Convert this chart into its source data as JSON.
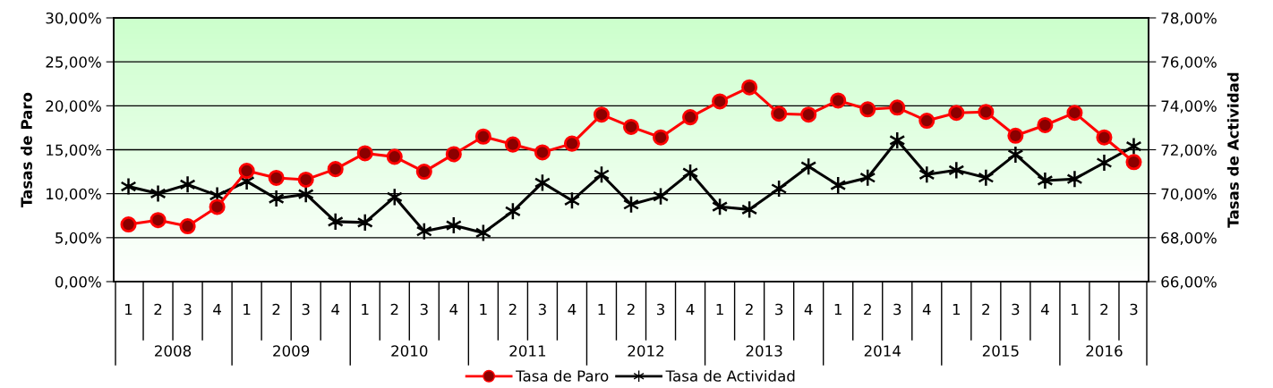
{
  "chart_data": {
    "type": "line",
    "categories": [
      "1",
      "2",
      "3",
      "4",
      "1",
      "2",
      "3",
      "4",
      "1",
      "2",
      "3",
      "4",
      "1",
      "2",
      "3",
      "4",
      "1",
      "2",
      "3",
      "4",
      "1",
      "2",
      "3",
      "4",
      "1",
      "2",
      "3",
      "4",
      "1",
      "2",
      "3",
      "4",
      "1",
      "2",
      "3"
    ],
    "annotations": [
      "2008",
      "2009",
      "2010",
      "2011",
      "2012",
      "2013",
      "2014",
      "2015",
      "2016"
    ],
    "series": [
      {
        "name": "Tasa de Paro",
        "color": "#ff0000",
        "marker": "circle",
        "values": [
          6.5,
          7.0,
          6.3,
          8.5,
          12.6,
          11.8,
          11.6,
          12.8,
          14.6,
          14.2,
          12.5,
          14.5,
          16.5,
          15.6,
          14.7,
          15.7,
          19.0,
          17.6,
          16.4,
          18.7,
          20.5,
          22.1,
          19.1,
          19.0,
          20.6,
          19.6,
          19.8,
          18.3,
          19.2,
          19.3,
          16.6,
          17.8,
          19.2,
          16.4,
          13.6
        ]
      },
      {
        "name": "Tasa de Actividad",
        "color": "#000000",
        "marker": "cross",
        "axis": "y2",
        "values": [
          70.33,
          70.01,
          70.42,
          69.92,
          70.56,
          69.78,
          69.98,
          68.73,
          68.69,
          69.85,
          68.29,
          68.56,
          68.22,
          69.2,
          70.5,
          69.69,
          70.87,
          69.51,
          69.88,
          70.96,
          69.41,
          69.28,
          70.23,
          71.24,
          70.39,
          70.73,
          72.43,
          70.87,
          71.07,
          70.73,
          71.78,
          70.6,
          70.67,
          71.41,
          72.16
        ]
      }
    ],
    "ylabel": "Tasas de Paro",
    "y2label": "Tasas de Actividad",
    "ylim": [
      0,
      30
    ],
    "yticks": [
      {
        "value": 0,
        "label": "0,00%"
      },
      {
        "value": 5,
        "label": "5,00%"
      },
      {
        "value": 10,
        "label": "10,00%"
      },
      {
        "value": 15,
        "label": "15,00%"
      },
      {
        "value": 20,
        "label": "20,00%"
      },
      {
        "value": 25,
        "label": "25,00%"
      },
      {
        "value": 30,
        "label": "30,00%"
      }
    ],
    "y2lim": [
      66,
      78
    ],
    "y2ticks": [
      {
        "value": 66,
        "label": "66,00%"
      },
      {
        "value": 68,
        "label": "68,00%"
      },
      {
        "value": 70,
        "label": "70,00%"
      },
      {
        "value": 72,
        "label": "72,00%"
      },
      {
        "value": 74,
        "label": "74,00%"
      },
      {
        "value": 76,
        "label": "76,00%"
      },
      {
        "value": 78,
        "label": "78,00%"
      }
    ],
    "grid": "y",
    "legend": "bottom",
    "line_style": "solid"
  }
}
